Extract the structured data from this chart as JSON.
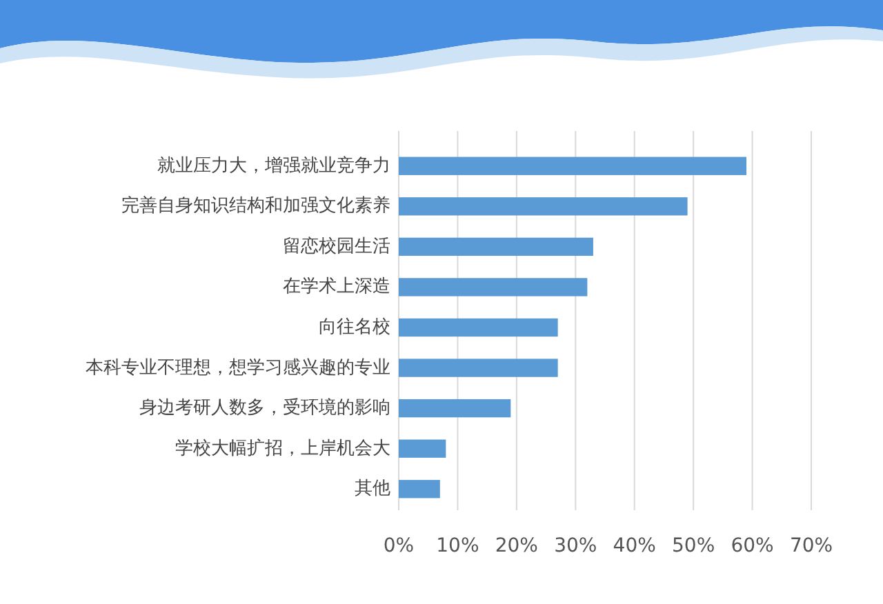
{
  "chart_data": {
    "type": "bar",
    "orientation": "horizontal",
    "categories": [
      "就业压力大，增强就业竞争力",
      "完善自身知识结构和加强文化素养",
      "留恋校园生活",
      "在学术上深造",
      "向往名校",
      "本科专业不理想，想学习感兴趣的专业",
      "身边考研人数多，受环境的影响",
      "学校大幅扩招，上岸机会大",
      "其他"
    ],
    "values": [
      59,
      49,
      33,
      32,
      27,
      27,
      19,
      8,
      7
    ],
    "color": "#5b9bd5",
    "xlim": [
      0,
      70
    ],
    "xticks": [
      {
        "value": 0,
        "label": "0%"
      },
      {
        "value": 10,
        "label": "10%"
      },
      {
        "value": 20,
        "label": "20%"
      },
      {
        "value": 30,
        "label": "30%"
      },
      {
        "value": 40,
        "label": "40%"
      },
      {
        "value": 50,
        "label": "50%"
      },
      {
        "value": 60,
        "label": "60%"
      },
      {
        "value": 70,
        "label": "70%"
      }
    ],
    "grid": "x"
  }
}
